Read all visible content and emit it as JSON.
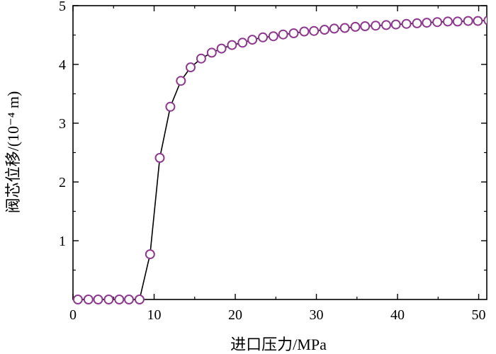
{
  "chart_data": {
    "type": "line",
    "title": "",
    "xlabel": "进口压力/MPa",
    "ylabel": "阀芯位移/(10⁻⁴ m)",
    "xlim": [
      0,
      51
    ],
    "ylim": [
      0,
      5
    ],
    "xticks": [
      0,
      10,
      20,
      30,
      40,
      50
    ],
    "xtick_labels": [
      "0",
      "10",
      "20",
      "30",
      "40",
      "50"
    ],
    "yticks": [
      1,
      2,
      3,
      4,
      5
    ],
    "ytick_labels": [
      "1",
      "2",
      "3",
      "4",
      "5"
    ],
    "grid": false,
    "legend": "none",
    "series": [
      {
        "line_color": "#000000",
        "marker_color": "#8e3a8e",
        "marker": "open-circle",
        "x": [
          0.6,
          1.9,
          3.1,
          4.4,
          5.7,
          6.9,
          8.2,
          9.5,
          10.7,
          12.0,
          13.3,
          14.5,
          15.8,
          17.1,
          18.3,
          19.6,
          20.9,
          22.1,
          23.4,
          24.7,
          25.9,
          27.2,
          28.5,
          29.7,
          31.0,
          32.2,
          33.5,
          34.8,
          36.0,
          37.3,
          38.6,
          39.8,
          41.1,
          42.4,
          43.6,
          44.9,
          46.2,
          47.4,
          48.7,
          49.9,
          51.2
        ],
        "y": [
          0,
          0,
          0,
          0,
          0,
          0,
          0,
          0.77,
          2.41,
          3.28,
          3.72,
          3.95,
          4.1,
          4.2,
          4.27,
          4.33,
          4.37,
          4.42,
          4.46,
          4.48,
          4.51,
          4.53,
          4.56,
          4.57,
          4.59,
          4.61,
          4.62,
          4.64,
          4.65,
          4.66,
          4.67,
          4.68,
          4.69,
          4.7,
          4.71,
          4.72,
          4.73,
          4.73,
          4.74,
          4.74,
          4.75
        ]
      }
    ]
  }
}
